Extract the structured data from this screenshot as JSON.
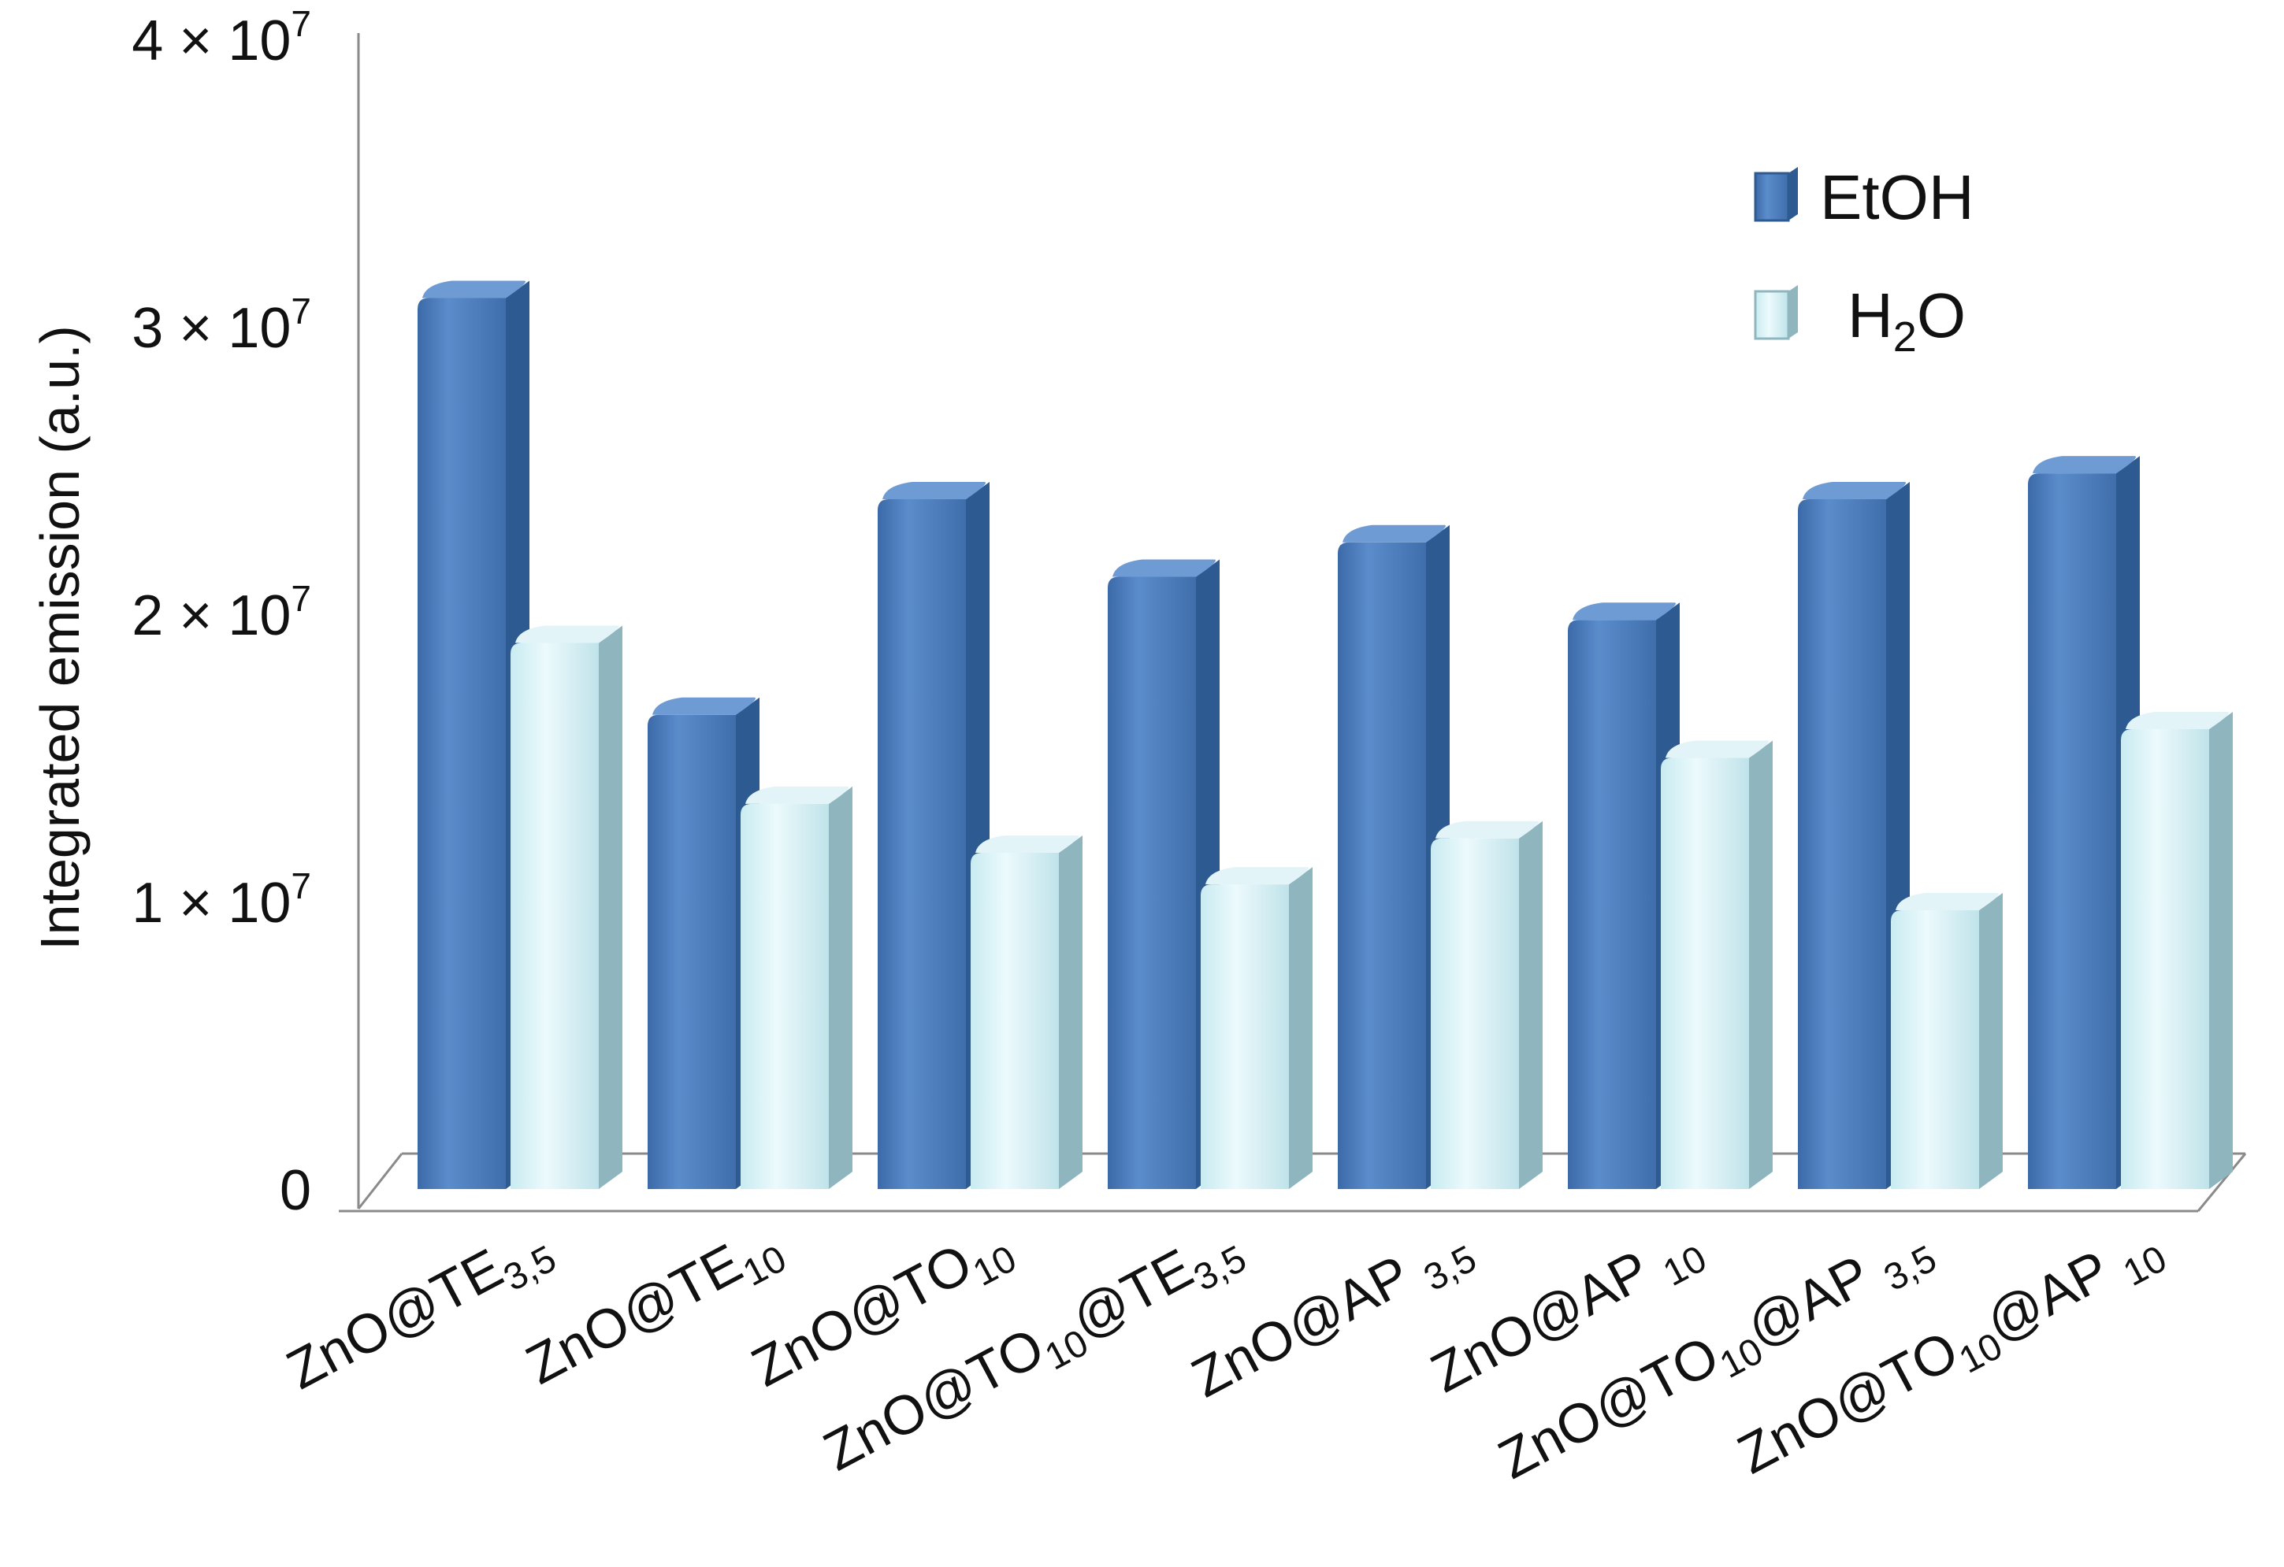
{
  "chart_data": {
    "type": "bar",
    "title": "",
    "xlabel": "",
    "ylabel": "Integrated emission  (a.u.)",
    "ylim": [
      0,
      40000000
    ],
    "y_ticks": [
      {
        "value": 0,
        "mantissa": "0",
        "exponent": ""
      },
      {
        "value": 10000000,
        "mantissa": "1 × 10",
        "exponent": "7"
      },
      {
        "value": 20000000,
        "mantissa": "2 × 10",
        "exponent": "7"
      },
      {
        "value": 30000000,
        "mantissa": "3 × 10",
        "exponent": "7"
      },
      {
        "value": 40000000,
        "mantissa": "4 × 10",
        "exponent": "7"
      }
    ],
    "categories": [
      {
        "parts": [
          {
            "text": "ZnO@TE",
            "sub": false
          },
          {
            "text": "3,5",
            "sub": true
          }
        ]
      },
      {
        "parts": [
          {
            "text": "ZnO@TE",
            "sub": false
          },
          {
            "text": "10",
            "sub": true
          }
        ]
      },
      {
        "parts": [
          {
            "text": "ZnO@TO",
            "sub": false
          },
          {
            "text": "10",
            "sub": true
          }
        ]
      },
      {
        "parts": [
          {
            "text": "ZnO@TO",
            "sub": false
          },
          {
            "text": "10",
            "sub": true
          },
          {
            "text": "@TE",
            "sub": false
          },
          {
            "text": "3,5",
            "sub": true
          }
        ]
      },
      {
        "parts": [
          {
            "text": "ZnO@AP ",
            "sub": false
          },
          {
            "text": "3,5",
            "sub": true
          }
        ]
      },
      {
        "parts": [
          {
            "text": "ZnO@AP ",
            "sub": false
          },
          {
            "text": "10",
            "sub": true
          }
        ]
      },
      {
        "parts": [
          {
            "text": "ZnO@TO",
            "sub": false
          },
          {
            "text": "10",
            "sub": true
          },
          {
            "text": "@AP ",
            "sub": false
          },
          {
            "text": "3,5",
            "sub": true
          }
        ]
      },
      {
        "parts": [
          {
            "text": "ZnO@TO",
            "sub": false
          },
          {
            "text": "10",
            "sub": true
          },
          {
            "text": "@AP ",
            "sub": false
          },
          {
            "text": "10",
            "sub": true
          }
        ]
      }
    ],
    "series": [
      {
        "name": "EtOH",
        "legend_parts": [
          {
            "text": "EtOH",
            "sub": false
          }
        ],
        "color": "#4f81bd",
        "side_color": "#2c5a91",
        "top_color": "#6f9bd4",
        "values": [
          31000000,
          16500000,
          24000000,
          21300000,
          22500000,
          19800000,
          24000000,
          24900000
        ]
      },
      {
        "name": "H2O",
        "legend_parts": [
          {
            "text": "H",
            "sub": false
          },
          {
            "text": "2",
            "sub": true
          },
          {
            "text": "O",
            "sub": false
          }
        ],
        "color": "#bfe6ee",
        "side_color": "#8fb6bf",
        "top_color": "#e2f4f7",
        "values": [
          19000000,
          13400000,
          11700000,
          10600000,
          12200000,
          15000000,
          9700000,
          16000000
        ]
      }
    ],
    "legend_position": "top-right",
    "grid": false,
    "view": "3d"
  }
}
